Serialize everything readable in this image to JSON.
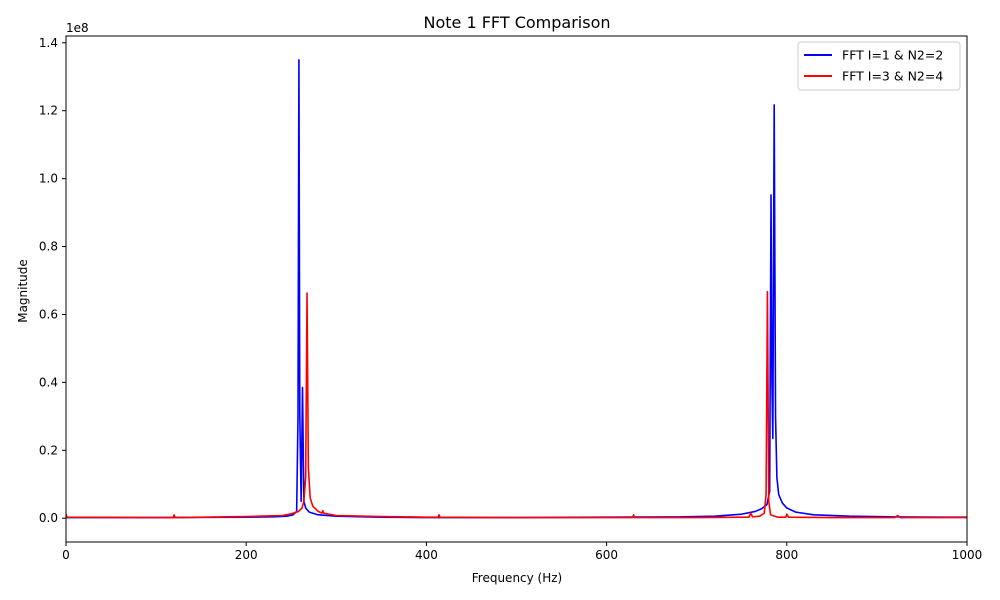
{
  "chart_data": {
    "type": "line",
    "title": "Note 1 FFT Comparison",
    "xlabel": "Frequency (Hz)",
    "ylabel": "Magnitude",
    "y_offset_label": "1e8",
    "xlim": [
      0,
      1000
    ],
    "ylim": [
      -0.07,
      1.42
    ],
    "y_scale_factor": 100000000,
    "x_ticks": [
      0,
      200,
      400,
      600,
      800,
      1000
    ],
    "x_tick_labels": [
      "0",
      "200",
      "400",
      "600",
      "800",
      "1000"
    ],
    "y_ticks": [
      0.0,
      0.2,
      0.4,
      0.6,
      0.8,
      1.0,
      1.2,
      1.4
    ],
    "y_tick_labels": [
      "0.0",
      "0.2",
      "0.4",
      "0.6",
      "0.8",
      "1.0",
      "1.2",
      "1.4"
    ],
    "grid": false,
    "legend_position": "top-right",
    "series": [
      {
        "name": "FFT I=1 & N2=2",
        "color": "#0000ff",
        "points": [
          [
            0,
            0.002
          ],
          [
            100,
            0.002
          ],
          [
            200,
            0.003
          ],
          [
            230,
            0.004
          ],
          [
            245,
            0.006
          ],
          [
            252,
            0.01
          ],
          [
            256,
            0.02
          ],
          [
            257.5,
            0.3
          ],
          [
            258.5,
            1.35
          ],
          [
            259.5,
            0.3
          ],
          [
            261,
            0.05
          ],
          [
            262.5,
            0.385
          ],
          [
            264,
            0.05
          ],
          [
            266,
            0.03
          ],
          [
            270,
            0.018
          ],
          [
            280,
            0.01
          ],
          [
            300,
            0.006
          ],
          [
            350,
            0.003
          ],
          [
            400,
            0.002
          ],
          [
            500,
            0.002
          ],
          [
            600,
            0.003
          ],
          [
            680,
            0.004
          ],
          [
            720,
            0.006
          ],
          [
            750,
            0.012
          ],
          [
            765,
            0.02
          ],
          [
            772,
            0.028
          ],
          [
            778,
            0.04
          ],
          [
            781,
            0.08
          ],
          [
            782.5,
            0.952
          ],
          [
            783.5,
            0.4
          ],
          [
            784.5,
            0.235
          ],
          [
            786,
            1.217
          ],
          [
            787.5,
            0.3
          ],
          [
            789,
            0.12
          ],
          [
            791,
            0.07
          ],
          [
            795,
            0.045
          ],
          [
            800,
            0.03
          ],
          [
            810,
            0.018
          ],
          [
            830,
            0.01
          ],
          [
            870,
            0.006
          ],
          [
            920,
            0.004
          ],
          [
            970,
            0.003
          ],
          [
            1000,
            0.003
          ]
        ]
      },
      {
        "name": "FFT I=3 & N2=4",
        "color": "#ff0000",
        "points": [
          [
            0,
            0.012
          ],
          [
            1,
            0.003
          ],
          [
            100,
            0.002
          ],
          [
            119,
            0.002
          ],
          [
            120,
            0.01
          ],
          [
            121,
            0.002
          ],
          [
            200,
            0.005
          ],
          [
            240,
            0.008
          ],
          [
            250,
            0.013
          ],
          [
            258,
            0.02
          ],
          [
            262,
            0.03
          ],
          [
            264,
            0.05
          ],
          [
            266,
            0.12
          ],
          [
            267.5,
            0.663
          ],
          [
            269,
            0.15
          ],
          [
            271,
            0.06
          ],
          [
            274,
            0.035
          ],
          [
            280,
            0.02
          ],
          [
            284,
            0.015
          ],
          [
            285,
            0.022
          ],
          [
            286,
            0.015
          ],
          [
            300,
            0.008
          ],
          [
            350,
            0.005
          ],
          [
            400,
            0.003
          ],
          [
            413,
            0.003
          ],
          [
            414,
            0.01
          ],
          [
            415,
            0.003
          ],
          [
            500,
            0.002
          ],
          [
            600,
            0.002
          ],
          [
            629,
            0.002
          ],
          [
            630,
            0.01
          ],
          [
            631,
            0.002
          ],
          [
            700,
            0.002
          ],
          [
            750,
            0.003
          ],
          [
            758,
            0.003
          ],
          [
            760,
            0.015
          ],
          [
            762,
            0.004
          ],
          [
            770,
            0.006
          ],
          [
            775,
            0.015
          ],
          [
            777,
            0.07
          ],
          [
            778.5,
            0.667
          ],
          [
            780,
            0.05
          ],
          [
            782,
            0.01
          ],
          [
            790,
            0.003
          ],
          [
            799,
            0.003
          ],
          [
            800,
            0.012
          ],
          [
            802,
            0.003
          ],
          [
            850,
            0.002
          ],
          [
            920,
            0.002
          ],
          [
            923,
            0.008
          ],
          [
            926,
            0.002
          ],
          [
            1000,
            0.002
          ]
        ]
      }
    ]
  }
}
